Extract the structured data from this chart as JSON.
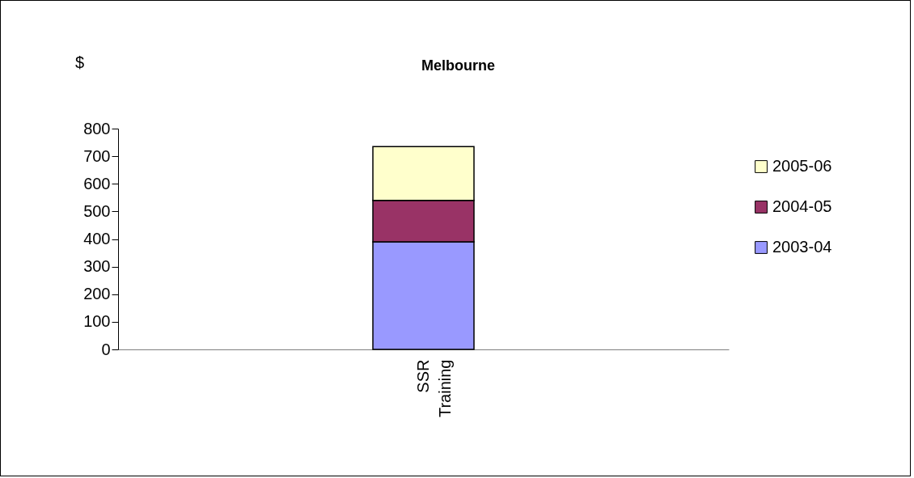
{
  "chart_data": {
    "type": "bar",
    "title": "Melbourne",
    "ylabel": "$",
    "stacked": true,
    "categories": [
      "SSR Training"
    ],
    "series": [
      {
        "name": "2003-04",
        "color": "#9999ff",
        "values": [
          390
        ]
      },
      {
        "name": "2004-05",
        "color": "#993366",
        "values": [
          150
        ]
      },
      {
        "name": "2005-06",
        "color": "#ffffcc",
        "values": [
          195
        ]
      }
    ],
    "ylim": [
      0,
      800
    ],
    "yticks": [
      0,
      100,
      200,
      300,
      400,
      500,
      600,
      700,
      800
    ],
    "grid": false,
    "legend": "right"
  }
}
